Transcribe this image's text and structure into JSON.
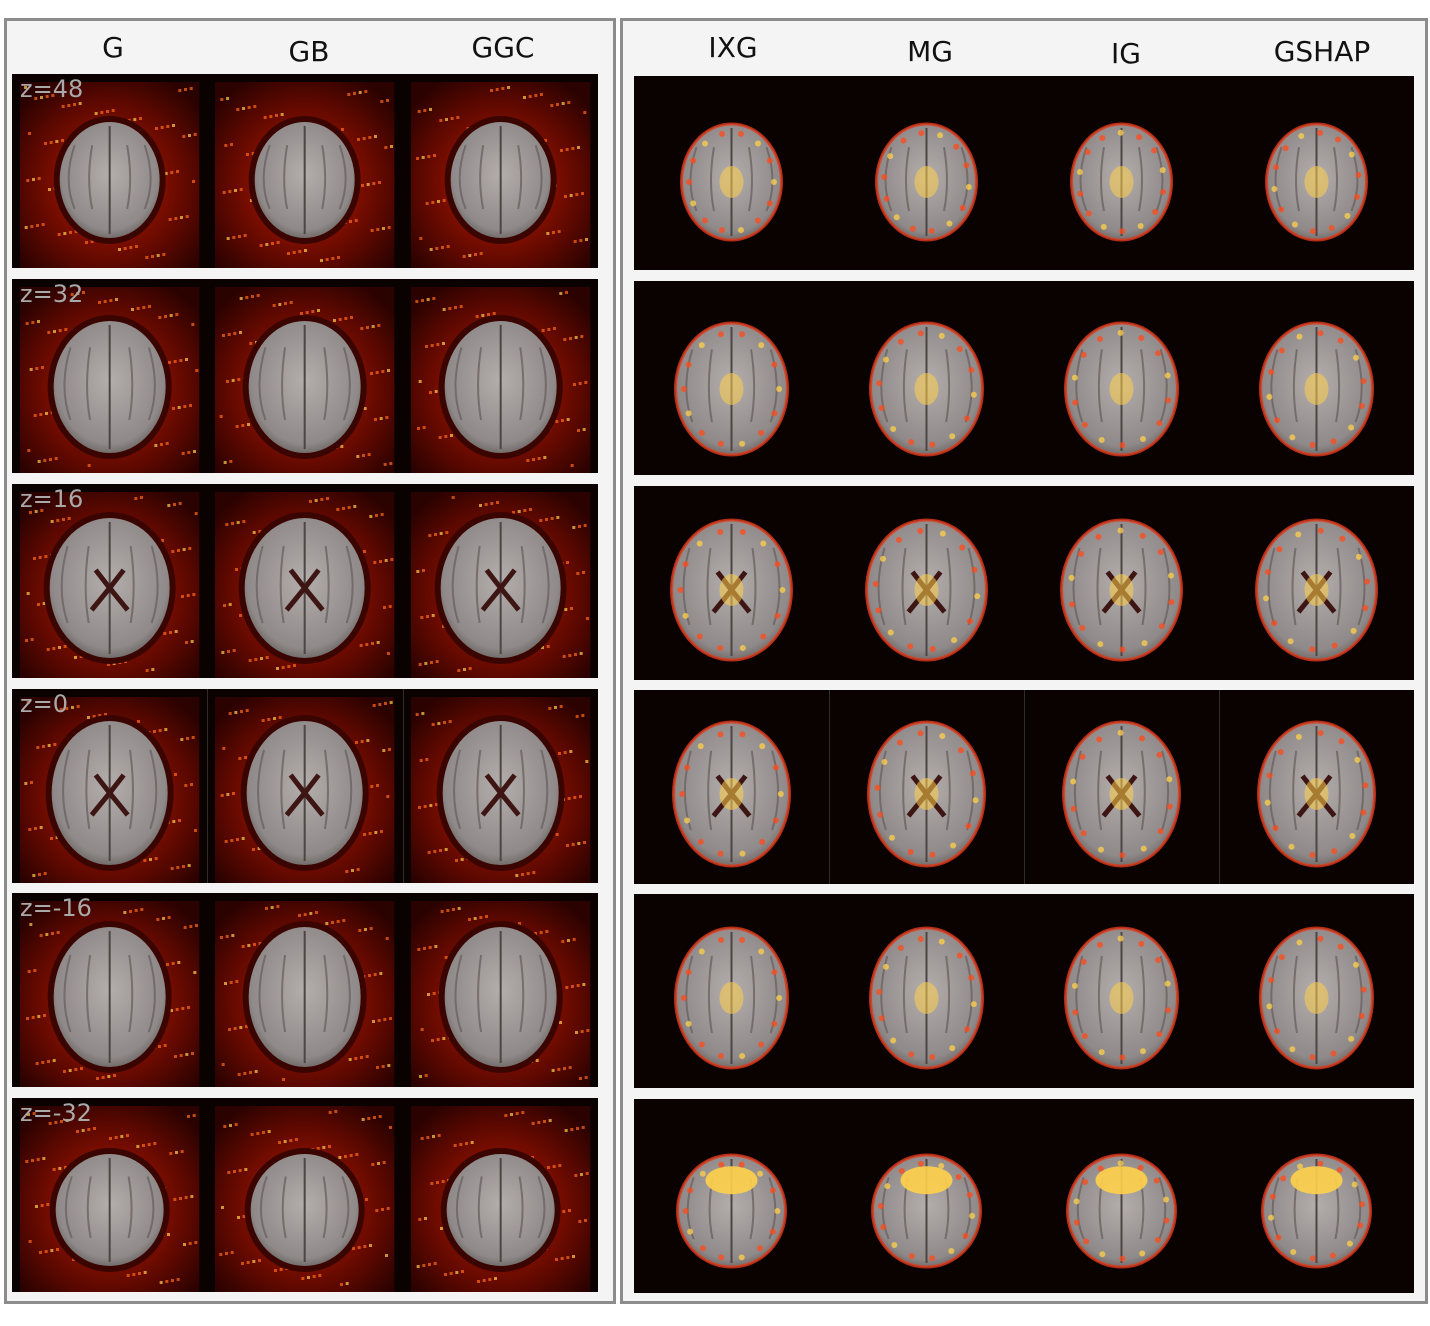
{
  "left_methods": [
    "G",
    "GB",
    "GGC"
  ],
  "right_methods": [
    "IXG",
    "MG",
    "IG",
    "GSHAP"
  ],
  "slices": [
    "z=48",
    "z=32",
    "z=16",
    "z=0",
    "z=-16",
    "z=-32"
  ],
  "colors": {
    "panel_border": "#8c8c8c",
    "background_dark": "#0a0101",
    "heat_low": "#5a0800",
    "heat_mid": "#c21a00",
    "heat_high": "#ffd04a",
    "brain_gray": "#8f8a89",
    "label_gray": "#a9a9a9"
  },
  "image_description_keys": [
    "brain-slice",
    "saliency-heatmap"
  ]
}
